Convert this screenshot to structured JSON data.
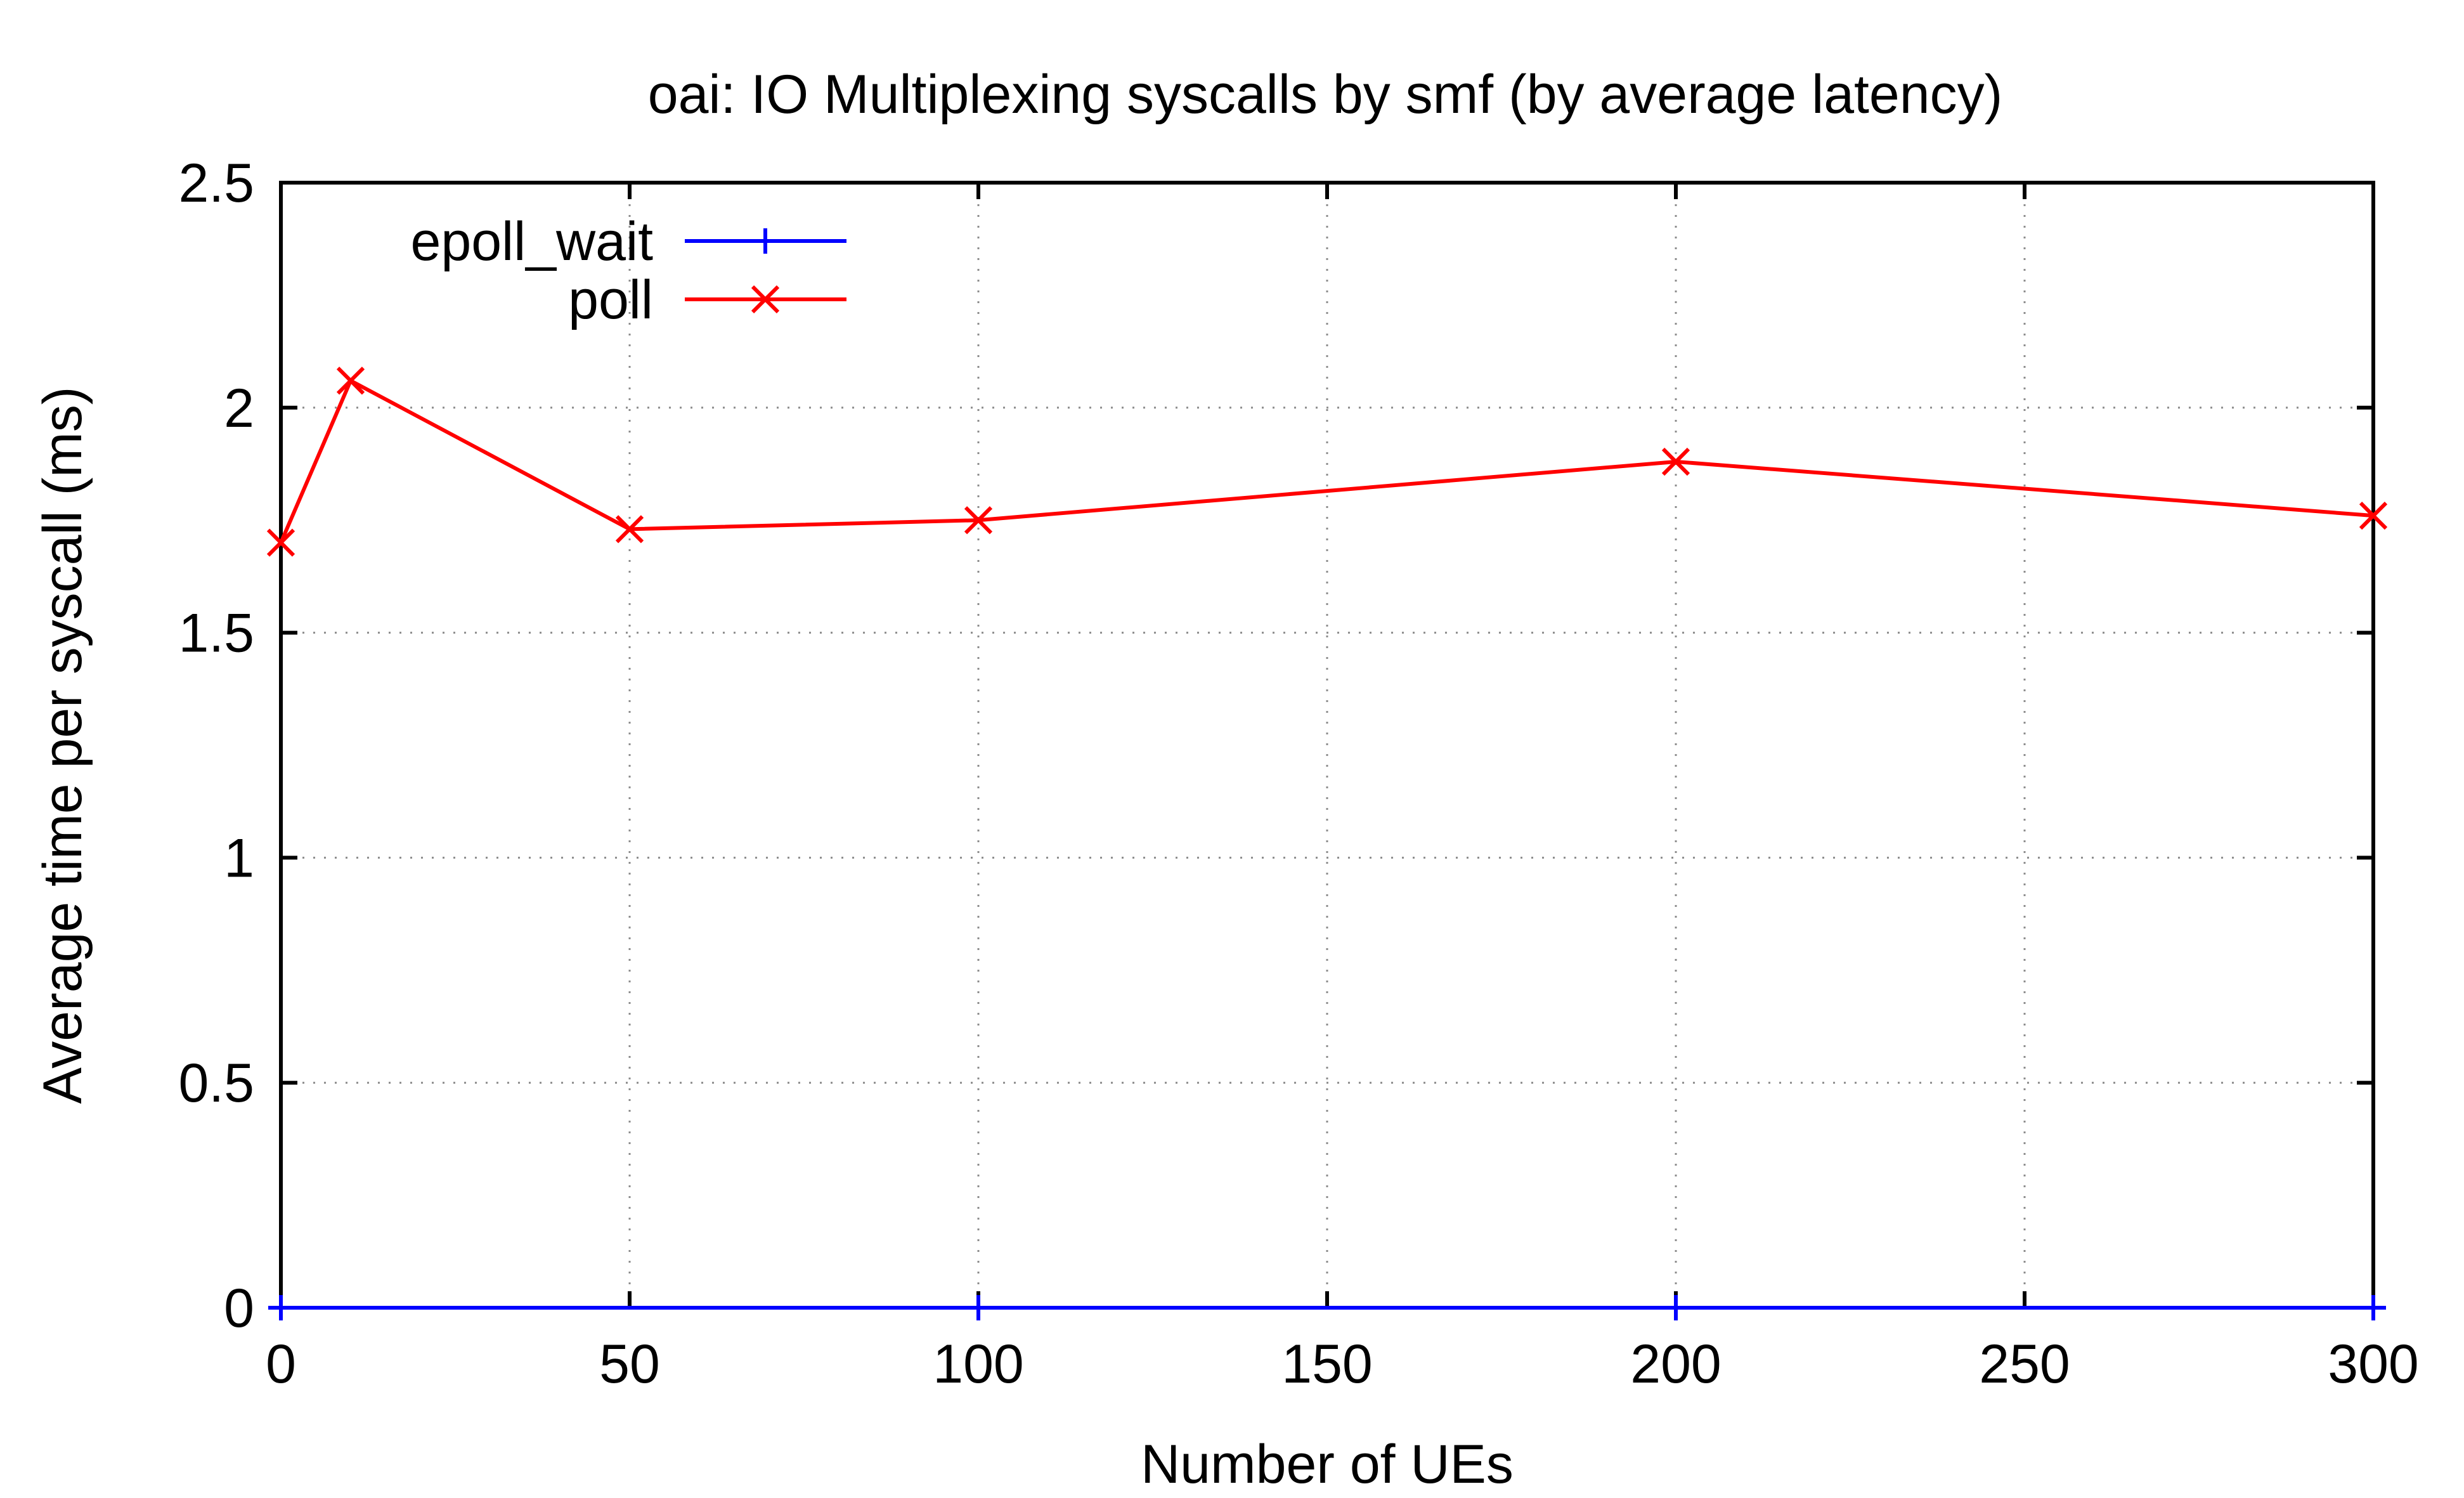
{
  "chart_data": {
    "type": "line",
    "title": "oai: IO Multiplexing syscalls by smf (by average latency)",
    "xlabel": "Number of UEs",
    "ylabel": "Average time per syscall (ms)",
    "xlim": [
      0,
      300
    ],
    "ylim": [
      0,
      2.5
    ],
    "xticks": [
      "0",
      "50",
      "100",
      "150",
      "200",
      "250",
      "300"
    ],
    "yticks": [
      "0",
      "0.5",
      "1",
      "1.5",
      "2",
      "2.5"
    ],
    "grid": true,
    "legend_position": "top-left",
    "series": [
      {
        "name": "epoll_wait",
        "color": "#0000ff",
        "marker": "plus",
        "x": [
          0,
          100,
          200,
          300
        ],
        "y": [
          0,
          0,
          0,
          0
        ]
      },
      {
        "name": "poll",
        "color": "#ff0000",
        "marker": "cross",
        "x": [
          0,
          10,
          50,
          100,
          200,
          300
        ],
        "y": [
          1.7,
          2.06,
          1.73,
          1.75,
          1.88,
          1.76
        ]
      }
    ]
  }
}
